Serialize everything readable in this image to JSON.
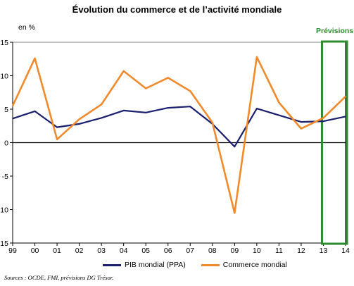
{
  "chart_data": {
    "type": "line",
    "title": "Évolution du commerce et de l’activité mondiale",
    "ylabel": "en %",
    "forecast_label": "Prévisions",
    "source": "Sources : OCDE, FMI, prévisions DG Trésor.",
    "ylim": [
      -15,
      15
    ],
    "yticks": [
      15,
      10,
      5,
      0,
      -5,
      -10,
      -15
    ],
    "ytick_labels": [
      "15",
      "10",
      "5",
      "0",
      "-5",
      "-10",
      "-15"
    ],
    "x": [
      "99",
      "00",
      "01",
      "02",
      "03",
      "04",
      "05",
      "06",
      "07",
      "08",
      "09",
      "10",
      "11",
      "12",
      "13",
      "14"
    ],
    "forecast_range": [
      "13",
      "14"
    ],
    "series": [
      {
        "name": "PIB mondial (PPA)",
        "color": "#1a1f6e",
        "values": [
          3.6,
          4.7,
          2.3,
          2.8,
          3.7,
          4.8,
          4.5,
          5.2,
          5.4,
          2.8,
          -0.6,
          5.1,
          4.1,
          3.1,
          3.2,
          3.9
        ]
      },
      {
        "name": "Commerce mondial",
        "color": "#f08a2c",
        "values": [
          5.5,
          12.6,
          0.5,
          3.5,
          5.7,
          10.7,
          8.1,
          9.7,
          7.7,
          3.0,
          -10.5,
          12.8,
          6.0,
          2.1,
          3.7,
          6.9
        ]
      }
    ],
    "grid": false,
    "legend_position": "bottom-center"
  }
}
